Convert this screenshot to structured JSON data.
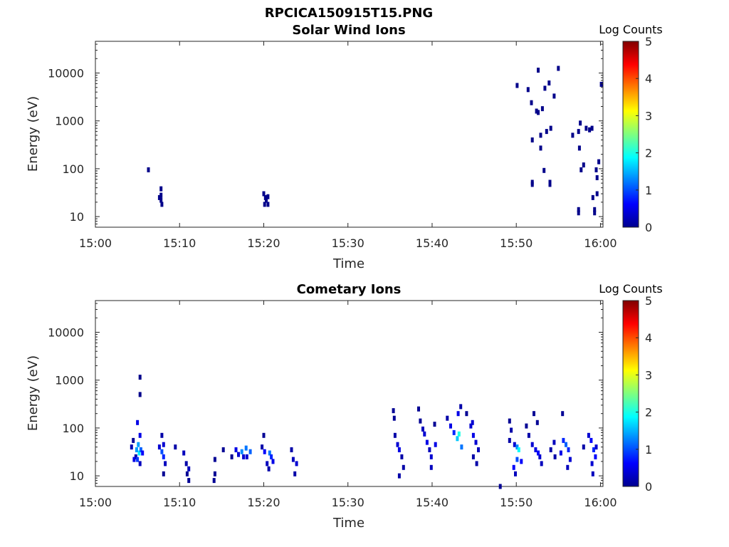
{
  "figure_title": "RPCICA150915T15.PNG",
  "chart_data": [
    {
      "type": "heatmap",
      "title": "Solar Wind Ions",
      "xlabel": "Time",
      "ylabel": "Energy (eV)",
      "x_ticks": [
        "15:00",
        "15:10",
        "15:20",
        "15:30",
        "15:40",
        "15:50",
        "16:00"
      ],
      "x_range_minutes": [
        0,
        60.3
      ],
      "y_ticks": [
        "10",
        "100",
        "1000",
        "10000"
      ],
      "ylim": [
        6,
        46000
      ],
      "y_scale": "log",
      "colorbar": {
        "label": "Log Counts",
        "ticks": [
          "0",
          "1",
          "2",
          "3",
          "4",
          "5"
        ],
        "range": [
          0,
          5
        ],
        "colormap": "jet"
      },
      "cells": [
        [
          6.3,
          95,
          0.05
        ],
        [
          7.8,
          22,
          0.05
        ],
        [
          7.8,
          28,
          0.05
        ],
        [
          7.8,
          38,
          0.05
        ],
        [
          7.6,
          25,
          0.05
        ],
        [
          7.9,
          18,
          0.05
        ],
        [
          20.0,
          30,
          0.05
        ],
        [
          20.1,
          18,
          0.05
        ],
        [
          20.3,
          22,
          0.05
        ],
        [
          20.5,
          26,
          0.05
        ],
        [
          20.5,
          18,
          0.05
        ],
        [
          20.2,
          25,
          0.05
        ],
        [
          50.1,
          5500,
          0.05
        ],
        [
          51.4,
          4500,
          0.05
        ],
        [
          51.8,
          2400,
          0.05
        ],
        [
          52.4,
          1600,
          0.05
        ],
        [
          52.6,
          1500,
          0.05
        ],
        [
          53.1,
          1800,
          0.05
        ],
        [
          52.6,
          11500,
          0.05
        ],
        [
          53.4,
          4800,
          0.05
        ],
        [
          53.9,
          6200,
          0.05
        ],
        [
          55.0,
          12500,
          0.05
        ],
        [
          54.5,
          3300,
          0.05
        ],
        [
          51.9,
          400,
          0.05
        ],
        [
          52.9,
          500,
          0.05
        ],
        [
          53.6,
          600,
          0.05
        ],
        [
          54.1,
          700,
          0.05
        ],
        [
          52.9,
          270,
          0.05
        ],
        [
          53.3,
          92,
          0.05
        ],
        [
          51.9,
          52,
          0.05
        ],
        [
          51.9,
          47,
          0.05
        ],
        [
          54.0,
          52,
          0.05
        ],
        [
          54.0,
          47,
          0.05
        ],
        [
          56.7,
          500,
          0.05
        ],
        [
          57.4,
          600,
          0.05
        ],
        [
          57.6,
          900,
          0.05
        ],
        [
          58.3,
          700,
          0.05
        ],
        [
          58.7,
          650,
          0.05
        ],
        [
          59.0,
          700,
          0.05
        ],
        [
          57.5,
          270,
          0.05
        ],
        [
          57.7,
          95,
          0.05
        ],
        [
          58.0,
          120,
          0.05
        ],
        [
          59.5,
          95,
          0.05
        ],
        [
          59.8,
          140,
          0.05
        ],
        [
          59.6,
          65,
          0.05
        ],
        [
          59.6,
          30,
          0.05
        ],
        [
          59.1,
          25,
          0.05
        ],
        [
          57.4,
          14,
          0.05
        ],
        [
          57.4,
          12,
          0.05
        ],
        [
          59.3,
          14,
          0.05
        ],
        [
          59.3,
          12,
          0.05
        ],
        [
          60.1,
          5800,
          0.05
        ]
      ]
    },
    {
      "type": "heatmap",
      "title": "Cometary Ions",
      "xlabel": "Time",
      "ylabel": "Energy (eV)",
      "x_ticks": [
        "15:00",
        "15:10",
        "15:20",
        "15:30",
        "15:40",
        "15:50",
        "16:00"
      ],
      "x_range_minutes": [
        0,
        60.3
      ],
      "y_ticks": [
        "10",
        "100",
        "1000",
        "10000"
      ],
      "ylim": [
        6,
        46000
      ],
      "y_scale": "log",
      "colorbar": {
        "label": "Log Counts",
        "ticks": [
          "0",
          "1",
          "2",
          "3",
          "4",
          "5"
        ],
        "range": [
          0,
          5
        ],
        "colormap": "jet"
      },
      "cells": [
        [
          5.3,
          1150,
          0.05
        ],
        [
          5.3,
          500,
          0.05
        ],
        [
          4.5,
          55,
          0.1
        ],
        [
          4.8,
          25,
          0.2
        ],
        [
          4.3,
          40,
          0.25
        ],
        [
          5.0,
          130,
          0.5
        ],
        [
          5.1,
          45,
          1.4
        ],
        [
          5.2,
          30,
          1.8
        ],
        [
          5.4,
          35,
          1.1
        ],
        [
          4.9,
          35,
          1.4
        ],
        [
          5.3,
          70,
          0.5
        ],
        [
          5.6,
          30,
          0.6
        ],
        [
          5.0,
          22,
          0.9
        ],
        [
          5.3,
          18,
          0.3
        ],
        [
          4.6,
          22,
          0.5
        ],
        [
          7.6,
          40,
          0.4
        ],
        [
          7.9,
          70,
          0.2
        ],
        [
          7.9,
          32,
          1.0
        ],
        [
          8.1,
          25,
          0.8
        ],
        [
          8.3,
          18,
          0.3
        ],
        [
          8.1,
          45,
          0.4
        ],
        [
          8.1,
          11,
          0.1
        ],
        [
          9.5,
          40,
          0.2
        ],
        [
          10.5,
          30,
          0.3
        ],
        [
          10.8,
          18,
          0.2
        ],
        [
          10.9,
          11,
          0.1
        ],
        [
          11.1,
          8,
          0.1
        ],
        [
          11.1,
          14,
          0.3
        ],
        [
          14.2,
          22,
          0.1
        ],
        [
          14.2,
          11,
          0.1
        ],
        [
          14.1,
          8,
          0.1
        ],
        [
          15.2,
          35,
          0.1
        ],
        [
          16.2,
          25,
          0.1
        ],
        [
          16.7,
          35,
          0.5
        ],
        [
          17.4,
          32,
          1.3
        ],
        [
          17.9,
          38,
          1.2
        ],
        [
          18.4,
          32,
          1.1
        ],
        [
          17.0,
          28,
          0.4
        ],
        [
          17.6,
          25,
          0.4
        ],
        [
          18.0,
          25,
          0.4
        ],
        [
          20.0,
          70,
          0.1
        ],
        [
          19.8,
          40,
          0.2
        ],
        [
          20.1,
          32,
          0.6
        ],
        [
          20.7,
          30,
          1.2
        ],
        [
          20.9,
          25,
          0.8
        ],
        [
          21.1,
          20,
          0.5
        ],
        [
          20.4,
          18,
          0.3
        ],
        [
          20.6,
          14,
          0.2
        ],
        [
          23.3,
          35,
          0.2
        ],
        [
          23.5,
          22,
          0.3
        ],
        [
          23.9,
          18,
          0.4
        ],
        [
          23.7,
          11,
          0.2
        ],
        [
          35.4,
          230,
          0.1
        ],
        [
          35.5,
          160,
          0.1
        ],
        [
          35.6,
          70,
          0.2
        ],
        [
          35.9,
          45,
          0.4
        ],
        [
          36.1,
          35,
          0.5
        ],
        [
          36.4,
          25,
          0.2
        ],
        [
          36.6,
          15,
          0.2
        ],
        [
          36.1,
          10,
          0.2
        ],
        [
          38.4,
          250,
          0.1
        ],
        [
          38.6,
          140,
          0.1
        ],
        [
          38.9,
          95,
          0.3
        ],
        [
          39.1,
          75,
          0.4
        ],
        [
          39.4,
          50,
          0.5
        ],
        [
          39.7,
          35,
          0.3
        ],
        [
          39.9,
          25,
          0.4
        ],
        [
          39.9,
          15,
          0.3
        ],
        [
          40.4,
          45,
          0.5
        ],
        [
          40.3,
          120,
          0.1
        ],
        [
          41.8,
          160,
          0.2
        ],
        [
          42.2,
          110,
          0.5
        ],
        [
          42.6,
          80,
          0.8
        ],
        [
          43.0,
          60,
          1.6
        ],
        [
          43.2,
          75,
          2.0
        ],
        [
          43.5,
          40,
          1.2
        ],
        [
          43.1,
          200,
          0.5
        ],
        [
          43.4,
          280,
          0.2
        ],
        [
          44.1,
          200,
          0.1
        ],
        [
          44.6,
          110,
          0.4
        ],
        [
          44.9,
          70,
          0.5
        ],
        [
          45.2,
          50,
          0.4
        ],
        [
          45.5,
          35,
          0.3
        ],
        [
          44.9,
          25,
          0.2
        ],
        [
          45.3,
          18,
          0.2
        ],
        [
          44.8,
          130,
          0.4
        ],
        [
          48.1,
          6,
          0.1
        ],
        [
          49.2,
          140,
          0.1
        ],
        [
          49.4,
          90,
          0.2
        ],
        [
          49.2,
          55,
          0.2
        ],
        [
          49.8,
          45,
          0.4
        ],
        [
          50.1,
          40,
          1.3
        ],
        [
          50.3,
          35,
          1.9
        ],
        [
          50.1,
          22,
          1.0
        ],
        [
          49.7,
          15,
          0.6
        ],
        [
          49.9,
          11,
          0.3
        ],
        [
          50.6,
          20,
          0.6
        ],
        [
          51.2,
          110,
          0.1
        ],
        [
          51.5,
          70,
          0.2
        ],
        [
          51.9,
          45,
          0.4
        ],
        [
          52.3,
          35,
          0.5
        ],
        [
          52.6,
          30,
          0.6
        ],
        [
          52.8,
          25,
          0.4
        ],
        [
          53.0,
          18,
          0.3
        ],
        [
          52.5,
          130,
          0.1
        ],
        [
          52.1,
          200,
          0.1
        ],
        [
          54.1,
          35,
          0.2
        ],
        [
          54.5,
          50,
          0.3
        ],
        [
          54.6,
          25,
          0.2
        ],
        [
          55.3,
          30,
          0.5
        ],
        [
          55.6,
          55,
          0.8
        ],
        [
          55.9,
          45,
          1.1
        ],
        [
          56.2,
          35,
          0.8
        ],
        [
          56.4,
          22,
          0.4
        ],
        [
          56.1,
          15,
          0.3
        ],
        [
          55.5,
          200,
          0.1
        ],
        [
          58.0,
          40,
          0.2
        ],
        [
          58.6,
          70,
          0.4
        ],
        [
          58.9,
          55,
          0.6
        ],
        [
          59.2,
          35,
          0.8
        ],
        [
          59.4,
          25,
          0.6
        ],
        [
          59.0,
          18,
          0.4
        ],
        [
          59.1,
          11,
          0.3
        ],
        [
          59.5,
          40,
          0.4
        ]
      ]
    }
  ]
}
